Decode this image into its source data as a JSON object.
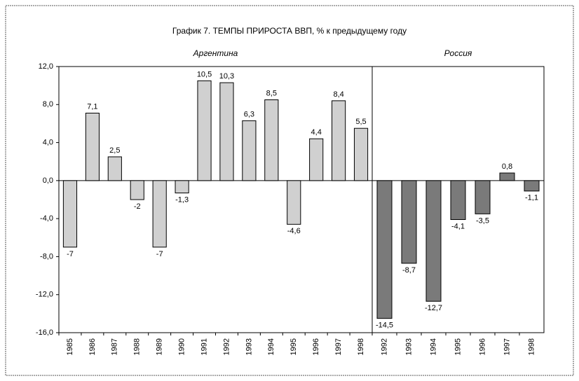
{
  "title": "График 7. ТЕМПЫ ПРИРОСТА ВВП, % к предыдущему году",
  "chart_data": [
    {
      "type": "bar",
      "title": "Аргентина",
      "categories": [
        "1985",
        "1986",
        "1987",
        "1988",
        "1989",
        "1990",
        "1991",
        "1992",
        "1993",
        "1994",
        "1995",
        "1996",
        "1997",
        "1998"
      ],
      "values": [
        -7,
        7.1,
        2.5,
        -2,
        -7,
        -1.3,
        10.5,
        10.3,
        6.3,
        8.5,
        -4.6,
        4.4,
        8.4,
        5.5
      ],
      "value_labels": [
        "-7",
        "7,1",
        "2,5",
        "-2",
        "-7",
        "-1,3",
        "10,5",
        "10,3",
        "6,3",
        "8,5",
        "-4,6",
        "4,4",
        "8,4",
        "5,5"
      ],
      "color": "#d0d0d0",
      "ylim": [
        -16,
        12
      ],
      "yticks": [
        {
          "value": 12,
          "label": "12,0"
        },
        {
          "value": 8,
          "label": "8,0"
        },
        {
          "value": 4,
          "label": "4,0"
        },
        {
          "value": 0,
          "label": "0,0"
        },
        {
          "value": -4,
          "label": "-4,0"
        },
        {
          "value": -8,
          "label": "-8,0"
        },
        {
          "value": -12,
          "label": "-12,0"
        },
        {
          "value": -16,
          "label": "-16,0"
        }
      ]
    },
    {
      "type": "bar",
      "title": "Россия",
      "categories": [
        "1992",
        "1993",
        "1994",
        "1995",
        "1996",
        "1997",
        "1998"
      ],
      "values": [
        -14.5,
        -8.7,
        -12.7,
        -4.1,
        -3.5,
        0.8,
        -1.1
      ],
      "value_labels": [
        "-14,5",
        "-8,7",
        "-12,7",
        "-4,1",
        "-3,5",
        "0,8",
        "-1,1"
      ],
      "color": "#7a7a7a",
      "ylim": [
        -16,
        12
      ]
    }
  ]
}
